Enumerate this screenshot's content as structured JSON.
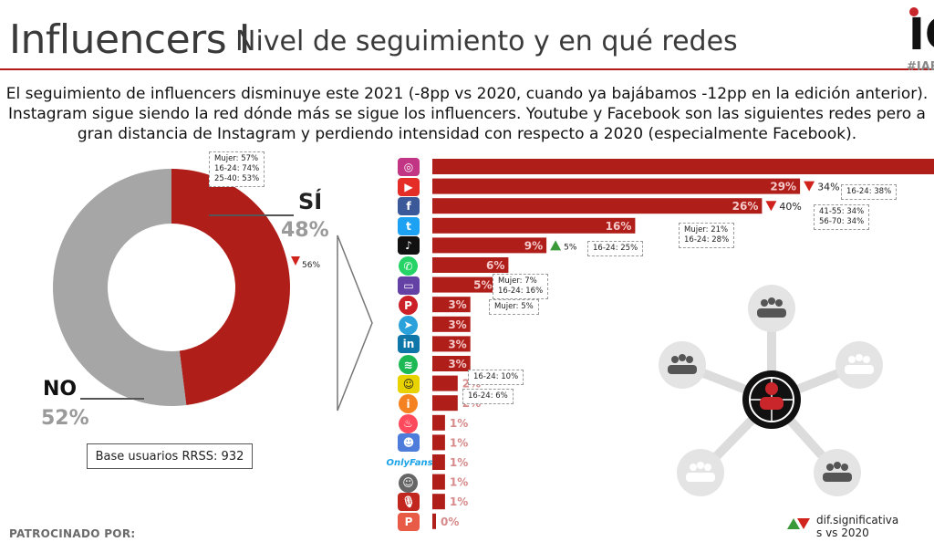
{
  "header": {
    "title": "Influencers I",
    "subtitle": "Nivel de seguimiento y en qué redes",
    "logo_text": "IC",
    "logo_tag": "#IAB"
  },
  "intro": {
    "line1": "El seguimiento de influencers disminuye este 2021 (-8pp vs 2020, cuando ya bajábamos -12pp en la edición anterior).",
    "line2": "Instagram sigue siendo la red dónde más se sigue los influencers. Youtube y Facebook son las siguientes redes pero a",
    "line3": "gran distancia de Instagram y perdiendo intensidad con respecto a 2020 (especialmente Facebook)."
  },
  "donut": {
    "si_label": "SÍ",
    "si_value": "48%",
    "no_label": "NO",
    "no_value": "52%",
    "si_color": "#b01e1a",
    "no_color": "#a6a6a6",
    "si_callout": [
      "Mujer: 57%",
      "16-24: 74%",
      "25-40: 53%"
    ],
    "prev_value": "56%",
    "base": "Base usuarios RRSS: 932"
  },
  "chart_data": {
    "type": "bar",
    "orientation": "horizontal",
    "categories": [
      "Instagram",
      "YouTube",
      "Facebook",
      "Twitter",
      "TikTok",
      "WhatsApp",
      "Twitch",
      "Pinterest",
      "Telegram",
      "LinkedIn",
      "Spotify",
      "Snapchat",
      "Tinder",
      "Badoo",
      "Discord",
      "OnlyFans",
      "Waze",
      "Podcast",
      "Patreon"
    ],
    "values": [
      null,
      29,
      26,
      16,
      9,
      6,
      5,
      3,
      3,
      3,
      3,
      2,
      2,
      1,
      1,
      1,
      1,
      1,
      0
    ],
    "value_labels": [
      "",
      "29%",
      "26%",
      "16%",
      "9%",
      "6%",
      "5%",
      "3%",
      "3%",
      "3%",
      "3%",
      "2%",
      "2%",
      "1%",
      "1%",
      "1%",
      "1%",
      "1%",
      "0%"
    ],
    "color": "#b01e1a",
    "icon_colors": [
      "#c13584",
      "#e52d27",
      "#3b5998",
      "#1da1f2",
      "#111111",
      "#25d366",
      "#6441a5",
      "#cb2027",
      "#2aa1da",
      "#0e76a8",
      "#1db954",
      "#e8d200",
      "#f58220",
      "#fe4a5c",
      "#4d7cdb",
      "#1aa3e8",
      "#666666",
      "#c1271f",
      "#e85b46"
    ],
    "icons": [
      "instagram-icon",
      "youtube-icon",
      "facebook-icon",
      "twitter-icon",
      "tiktok-icon",
      "whatsapp-icon",
      "twitch-icon",
      "pinterest-icon",
      "telegram-icon",
      "linkedin-icon",
      "spotify-icon",
      "snapchat-icon",
      "badoo-icon",
      "tinder-icon",
      "discord-icon",
      "onlyfans-icon",
      "waze-icon",
      "podcast-icon",
      "patreon-icon"
    ],
    "glyphs": [
      "◎",
      "▶",
      "f",
      "t",
      "♪",
      "✆",
      "▭",
      "P",
      "➤",
      "in",
      "≋",
      "☺",
      "i",
      "♨",
      "☻",
      "OF",
      "☺",
      "🎙",
      "P"
    ],
    "onlyfans_text": "OnlyFans",
    "comparisons": [
      {
        "index": 1,
        "direction": "down",
        "value": "34%",
        "callout": [
          "16-24: 38%"
        ]
      },
      {
        "index": 2,
        "direction": "down",
        "value": "40%",
        "callout": [
          "41-55: 34%",
          "56-70: 34%"
        ]
      },
      {
        "index": 3,
        "direction": "none",
        "value": "",
        "callout": [
          "Mujer: 21%",
          "16-24: 28%"
        ]
      },
      {
        "index": 4,
        "direction": "up",
        "value": "5%",
        "callout": [
          "16-24: 25%"
        ]
      },
      {
        "index": 6,
        "direction": "none",
        "value": "",
        "callout": [
          "Mujer: 7%",
          "16-24: 16%"
        ]
      },
      {
        "index": 7,
        "direction": "none",
        "value": "",
        "callout": [
          "Mujer: 5%"
        ]
      },
      {
        "index": 11,
        "direction": "none",
        "value": "",
        "callout": [
          "16-24: 10%"
        ]
      },
      {
        "index": 12,
        "direction": "none",
        "value": "",
        "callout": [
          "16-24: 6%"
        ]
      }
    ]
  },
  "legend": {
    "line1": "dif.significativa",
    "line2": "s vs 2020",
    "up_color": "#3a9a3a",
    "down_color": "#d0231c"
  },
  "footer": {
    "sponsor": "PATROCINADO POR:"
  }
}
